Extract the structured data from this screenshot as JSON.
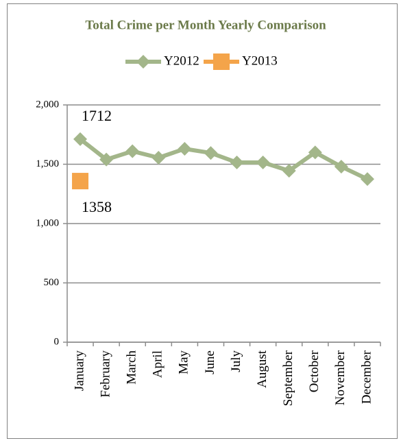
{
  "chart_data": {
    "type": "line",
    "title": "Total Crime per Month Yearly Comparison",
    "categories": [
      "January",
      "February",
      "March",
      "April",
      "May",
      "June",
      "July",
      "August",
      "September",
      "October",
      "November",
      "December"
    ],
    "series": [
      {
        "name": "Y2012",
        "color": "#a3b68a",
        "marker": "diamond",
        "values": [
          1712,
          1540,
          1610,
          1555,
          1630,
          1595,
          1515,
          1515,
          1445,
          1600,
          1480,
          1375
        ],
        "value_labels": [
          "1712",
          null,
          null,
          null,
          null,
          null,
          null,
          null,
          null,
          null,
          null,
          null
        ]
      },
      {
        "name": "Y2013",
        "color": "#f4a44a",
        "marker": "square",
        "values": [
          1358,
          null,
          null,
          null,
          null,
          null,
          null,
          null,
          null,
          null,
          null,
          null
        ],
        "value_labels": [
          "1358",
          null,
          null,
          null,
          null,
          null,
          null,
          null,
          null,
          null,
          null,
          null
        ]
      }
    ],
    "ylim": [
      0,
      2000
    ],
    "yticks": [
      0,
      500,
      {
        "value": 1000,
        "label": "1,000"
      },
      {
        "value": 1500,
        "label": "1,500"
      },
      {
        "value": 2000,
        "label": "2,000"
      }
    ],
    "grid": true,
    "legend": "top"
  }
}
